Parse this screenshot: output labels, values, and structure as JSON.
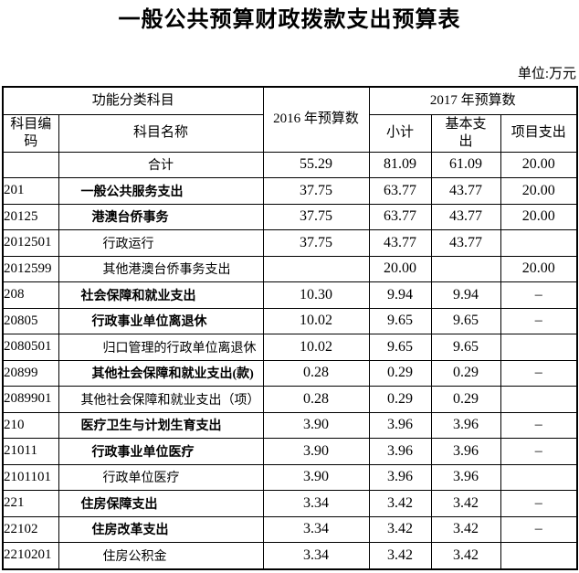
{
  "title": "一般公共预算财政拨款支出预算表",
  "unit_label": "单位:万元",
  "table": {
    "header": {
      "function_group": "功能分类科目",
      "code": "科目编\n码",
      "name": "科目名称",
      "y2016": "2016 年预算数",
      "y2017": "2017 年预算数",
      "subtotal": "小计",
      "basic": "基本支\n出",
      "project": "项目支出"
    },
    "rows": [
      {
        "code": "",
        "name": "合计",
        "indent": 0,
        "bold": false,
        "v2016": "55.29",
        "subtotal": "81.09",
        "basic": "61.09",
        "project": "20.00"
      },
      {
        "code": "201",
        "name": "一般公共服务支出",
        "indent": 1,
        "bold": true,
        "v2016": "37.75",
        "subtotal": "63.77",
        "basic": "43.77",
        "project": "20.00"
      },
      {
        "code": "20125",
        "name": "港澳台侨事务",
        "indent": 2,
        "bold": true,
        "v2016": "37.75",
        "subtotal": "63.77",
        "basic": "43.77",
        "project": "20.00"
      },
      {
        "code": "2012501",
        "name": "行政运行",
        "indent": 3,
        "bold": false,
        "v2016": "37.75",
        "subtotal": "43.77",
        "basic": "43.77",
        "project": ""
      },
      {
        "code": "2012599",
        "name": "其他港澳台侨事务支出",
        "indent": 3,
        "bold": false,
        "v2016": "",
        "subtotal": "20.00",
        "basic": "",
        "project": "20.00"
      },
      {
        "code": "208",
        "name": "社会保障和就业支出",
        "indent": 1,
        "bold": true,
        "v2016": "10.30",
        "subtotal": "9.94",
        "basic": "9.94",
        "project": "–"
      },
      {
        "code": "20805",
        "name": "行政事业单位离退休",
        "indent": 2,
        "bold": true,
        "v2016": "10.02",
        "subtotal": "9.65",
        "basic": "9.65",
        "project": "–"
      },
      {
        "code": "2080501",
        "name": "归口管理的行政单位离退休",
        "indent": 3,
        "bold": false,
        "v2016": "10.02",
        "subtotal": "9.65",
        "basic": "9.65",
        "project": ""
      },
      {
        "code": "20899",
        "name": "其他社会保障和就业支出(款)",
        "indent": 2,
        "bold": true,
        "v2016": "0.28",
        "subtotal": "0.29",
        "basic": "0.29",
        "project": "–"
      },
      {
        "code": "2089901",
        "name": "其他社会保障和就业支出（项）",
        "indent": 1,
        "bold": false,
        "v2016": "0.28",
        "subtotal": "0.29",
        "basic": "0.29",
        "project": ""
      },
      {
        "code": "210",
        "name": "医疗卫生与计划生育支出",
        "indent": 1,
        "bold": true,
        "v2016": "3.90",
        "subtotal": "3.96",
        "basic": "3.96",
        "project": "–"
      },
      {
        "code": "21011",
        "name": "行政事业单位医疗",
        "indent": 2,
        "bold": true,
        "v2016": "3.90",
        "subtotal": "3.96",
        "basic": "3.96",
        "project": "–"
      },
      {
        "code": "2101101",
        "name": "行政单位医疗",
        "indent": 3,
        "bold": false,
        "v2016": "3.90",
        "subtotal": "3.96",
        "basic": "3.96",
        "project": ""
      },
      {
        "code": "221",
        "name": "住房保障支出",
        "indent": 1,
        "bold": true,
        "v2016": "3.34",
        "subtotal": "3.42",
        "basic": "3.42",
        "project": "–"
      },
      {
        "code": "22102",
        "name": "住房改革支出",
        "indent": 2,
        "bold": true,
        "v2016": "3.34",
        "subtotal": "3.42",
        "basic": "3.42",
        "project": "–"
      },
      {
        "code": "2210201",
        "name": "住房公积金",
        "indent": 3,
        "bold": false,
        "v2016": "3.34",
        "subtotal": "3.42",
        "basic": "3.42",
        "project": ""
      }
    ]
  }
}
